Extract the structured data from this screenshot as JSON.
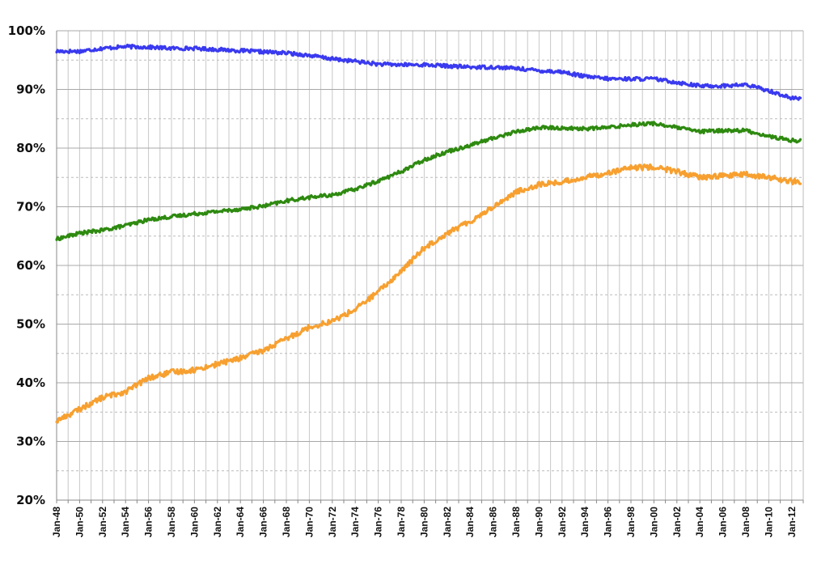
{
  "chart_data": {
    "type": "line",
    "title": "",
    "xlabel": "",
    "ylabel": "",
    "ylim": [
      20,
      100
    ],
    "xlim": [
      "1948-01",
      "2013-01"
    ],
    "grid": true,
    "legend": "none",
    "y_ticks": [
      "20%",
      "30%",
      "40%",
      "50%",
      "60%",
      "70%",
      "80%",
      "90%",
      "100%"
    ],
    "x_ticks": [
      "Jan-48",
      "Jan-50",
      "Jan-52",
      "Jan-54",
      "Jan-56",
      "Jan-58",
      "Jan-60",
      "Jan-62",
      "Jan-64",
      "Jan-66",
      "Jan-68",
      "Jan-70",
      "Jan-72",
      "Jan-74",
      "Jan-76",
      "Jan-78",
      "Jan-80",
      "Jan-82",
      "Jan-84",
      "Jan-86",
      "Jan-88",
      "Jan-90",
      "Jan-92",
      "Jan-94",
      "Jan-96",
      "Jan-98",
      "Jan-00",
      "Jan-02",
      "Jan-04",
      "Jan-06",
      "Jan-08",
      "Jan-10",
      "Jan-12"
    ],
    "x": [
      1948,
      1950,
      1952,
      1954,
      1956,
      1958,
      1960,
      1962,
      1964,
      1966,
      1968,
      1970,
      1972,
      1974,
      1976,
      1978,
      1980,
      1982,
      1984,
      1986,
      1988,
      1990,
      1992,
      1994,
      1996,
      1998,
      2000,
      2002,
      2004,
      2006,
      2008,
      2010,
      2012,
      2013
    ],
    "series": [
      {
        "color": "#3a3af0",
        "values": [
          96.5,
          96.5,
          97.0,
          97.3,
          97.2,
          97.0,
          97.0,
          96.8,
          96.6,
          96.4,
          96.2,
          95.8,
          95.2,
          94.8,
          94.3,
          94.2,
          94.2,
          94.0,
          93.8,
          93.8,
          93.6,
          93.2,
          93.0,
          92.2,
          91.8,
          91.8,
          91.8,
          91.2,
          90.6,
          90.6,
          90.8,
          89.8,
          88.5,
          88.4
        ]
      },
      {
        "color": "#2e8a10",
        "values": [
          64.5,
          65.5,
          66.0,
          66.8,
          67.8,
          68.3,
          68.8,
          69.2,
          69.6,
          70.1,
          71.0,
          71.6,
          72.0,
          73.0,
          74.4,
          76.0,
          78.0,
          79.4,
          80.5,
          81.7,
          82.8,
          83.5,
          83.4,
          83.3,
          83.5,
          84.0,
          84.2,
          83.5,
          82.8,
          83.0,
          83.0,
          82.0,
          81.3,
          81.2
        ]
      },
      {
        "color": "#f7a030",
        "values": [
          33.5,
          35.5,
          37.5,
          38.5,
          40.8,
          41.8,
          42.2,
          43.2,
          44.2,
          45.5,
          47.5,
          49.5,
          50.5,
          52.5,
          55.5,
          59.0,
          63.0,
          65.5,
          67.5,
          70.0,
          72.5,
          73.8,
          74.2,
          75.0,
          75.8,
          76.6,
          76.8,
          76.0,
          75.0,
          75.3,
          75.5,
          75.0,
          74.3,
          74.2
        ]
      }
    ]
  }
}
